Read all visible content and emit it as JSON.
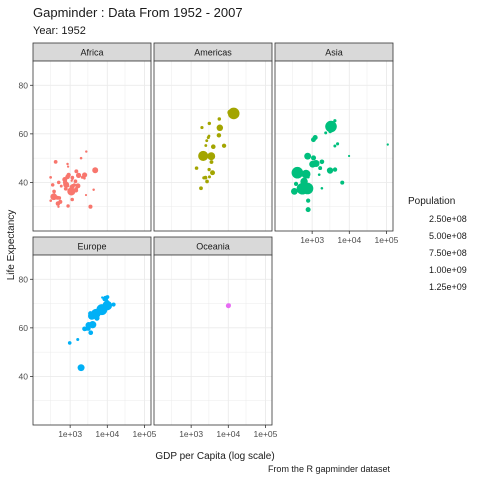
{
  "chart_data": {
    "type": "scatter",
    "title": "Gapminder : Data From 1952 - 2007",
    "subtitle": "Year: 1952",
    "xlabel": "GDP per Capita (log scale)",
    "ylabel": "Life Expectancy",
    "caption": "From the R gapminder dataset",
    "x_scale": "log10",
    "xlim": [
      100,
      150000
    ],
    "ylim": [
      20,
      90
    ],
    "x_ticks": [
      1000,
      10000,
      100000
    ],
    "x_tick_labels": [
      "1e+03",
      "1e+04",
      "1e+05"
    ],
    "y_ticks": [
      40,
      60,
      80
    ],
    "y_tick_labels": [
      "40",
      "60",
      "80"
    ],
    "grid": true,
    "legend": {
      "title": "Population",
      "position": "right",
      "labels": [
        "2.50e+08",
        "5.00e+08",
        "7.50e+08",
        "1.00e+09",
        "1.25e+09"
      ]
    },
    "colors": {
      "Africa": "#F8766D",
      "Americas": "#A3A500",
      "Asia": "#00BF7D",
      "Europe": "#00B0F6",
      "Oceania": "#E76BF3"
    },
    "facets": [
      {
        "name": "Africa",
        "points": [
          [
            2449,
            43.1,
            9.3
          ],
          [
            3521,
            30.0,
            4.2
          ],
          [
            1063,
            38.2,
            1.7
          ],
          [
            851,
            47.6,
            0.4
          ],
          [
            543,
            32.0,
            4.5
          ],
          [
            339,
            39.0,
            2.4
          ],
          [
            1173,
            38.5,
            5.0
          ],
          [
            1071,
            35.5,
            1.3
          ],
          [
            1179,
            36.7,
            2.7
          ],
          [
            1103,
            40.7,
            0.2
          ],
          [
            781,
            39.1,
            14.1
          ],
          [
            2126,
            42.1,
            0.9
          ],
          [
            1389,
            40.5,
            2.9
          ],
          [
            2670,
            34.8,
            0.1
          ],
          [
            376,
            35.9,
            0.2
          ],
          [
            329,
            34.1,
            1.4
          ],
          [
            362,
            34.1,
            20.9
          ],
          [
            4293,
            37.0,
            0.4
          ],
          [
            485,
            30.0,
            0.3
          ],
          [
            911,
            43.1,
            5.6
          ],
          [
            511,
            33.6,
            2.7
          ],
          [
            300,
            32.5,
            0.6
          ],
          [
            853,
            42.3,
            6.5
          ],
          [
            298,
            42.1,
            0.7
          ],
          [
            576,
            38.5,
            0.9
          ],
          [
            2388,
            42.7,
            1.0
          ],
          [
            1443,
            36.7,
            4.8
          ],
          [
            369,
            36.3,
            2.9
          ],
          [
            452,
            33.7,
            3.8
          ],
          [
            743,
            40.5,
            1.0
          ],
          [
            1968,
            50.0,
            0.5
          ],
          [
            1688,
            42.9,
            9.9
          ],
          [
            469,
            31.3,
            6.4
          ],
          [
            2424,
            41.7,
            0.5
          ],
          [
            762,
            37.4,
            3.4
          ],
          [
            1077,
            36.3,
            33.1
          ],
          [
            2719,
            52.7,
            0.3
          ],
          [
            493,
            40.0,
            2.5
          ],
          [
            880,
            46.5,
            0.1
          ],
          [
            1450,
            37.3,
            2.8
          ],
          [
            879,
            30.3,
            2.1
          ],
          [
            1136,
            32.98,
            2.5
          ],
          [
            4725,
            45.0,
            14.3
          ],
          [
            1616,
            38.6,
            8.5
          ],
          [
            1148,
            41.4,
            0.3
          ],
          [
            717,
            41.2,
            8.3
          ],
          [
            860,
            38.6,
            1.2
          ],
          [
            1468,
            44.6,
            3.6
          ],
          [
            734,
            39.98,
            5.8
          ],
          [
            1147,
            42.0,
            2.7
          ],
          [
            407,
            48.45,
            3.1
          ],
          [
            1300,
            39.0,
            1.8
          ]
        ]
      },
      {
        "name": "Americas",
        "points": [
          [
            5911,
            62.5,
            17.9
          ],
          [
            2677,
            40.4,
            2.9
          ],
          [
            2109,
            50.9,
            56.6
          ],
          [
            11367,
            68.8,
            14.8
          ],
          [
            3940,
            54.7,
            6.4
          ],
          [
            2144,
            50.6,
            12.4
          ],
          [
            2627,
            57.2,
            0.9
          ],
          [
            5587,
            59.4,
            6.0
          ],
          [
            1398,
            45.9,
            2.5
          ],
          [
            3522,
            48.4,
            3.5
          ],
          [
            3048,
            45.3,
            2.0
          ],
          [
            2428,
            42.0,
            3.1
          ],
          [
            1840,
            37.6,
            3.2
          ],
          [
            2195,
            41.9,
            1.5
          ],
          [
            2898,
            58.5,
            1.4
          ],
          [
            3478,
            50.8,
            30.1
          ],
          [
            3112,
            42.3,
            1.2
          ],
          [
            2480,
            55.2,
            0.9
          ],
          [
            1952,
            62.6,
            1.6
          ],
          [
            3759,
            44.0,
            8.0
          ],
          [
            3082,
            64.3,
            2.2
          ],
          [
            3023,
            59.1,
            0.7
          ],
          [
            13990,
            68.4,
            157.6
          ],
          [
            5717,
            66.1,
            2.3
          ],
          [
            7690,
            55.1,
            5.4
          ]
        ]
      },
      {
        "name": "Asia",
        "points": [
          [
            779,
            28.8,
            8.4
          ],
          [
            9867,
            50.9,
            0.1
          ],
          [
            684,
            37.5,
            46.9
          ],
          [
            368,
            39.4,
            4.7
          ],
          [
            400,
            44.0,
            556.3
          ],
          [
            3054,
            60.96,
            2.1
          ],
          [
            547,
            37.4,
            372.0
          ],
          [
            750,
            37.5,
            82.1
          ],
          [
            3035,
            44.9,
            17.3
          ],
          [
            4130,
            45.3,
            5.4
          ],
          [
            4087,
            65.4,
            1.6
          ],
          [
            3217,
            63.0,
            86.5
          ],
          [
            1547,
            43.2,
            0.6
          ],
          [
            1088,
            50.1,
            8.9
          ],
          [
            1031,
            47.5,
            20.9
          ],
          [
            108382,
            55.6,
            0.2
          ],
          [
            4835,
            55.9,
            1.4
          ],
          [
            1831,
            48.5,
            6.7
          ],
          [
            786,
            42.2,
            0.8
          ],
          [
            332,
            36.3,
            20.1
          ],
          [
            546,
            36.2,
            9.2
          ],
          [
            1828,
            37.6,
            0.5
          ],
          [
            684,
            43.4,
            41.3
          ],
          [
            1273,
            47.8,
            22.4
          ],
          [
            6460,
            39.9,
            4.0
          ],
          [
            2315,
            60.4,
            1.1
          ],
          [
            1083,
            57.6,
            7.98
          ],
          [
            1644,
            45.9,
            3.7
          ],
          [
            1207,
            58.5,
            8.6
          ],
          [
            757,
            50.8,
            21.3
          ],
          [
            606,
            40.4,
            26.2
          ],
          [
            781,
            32.5,
            4.96
          ],
          [
            4086,
            55.0,
            1.1
          ]
        ]
      },
      {
        "name": "Europe",
        "points": [
          [
            1601,
            55.2,
            1.3
          ],
          [
            6137,
            66.8,
            6.9
          ],
          [
            8343,
            68.0,
            8.7
          ],
          [
            973,
            53.8,
            2.8
          ],
          [
            2444,
            59.6,
            7.3
          ],
          [
            3119,
            61.2,
            3.9
          ],
          [
            6876,
            66.9,
            9.1
          ],
          [
            9692,
            70.8,
            4.3
          ],
          [
            6424,
            66.6,
            4.1
          ],
          [
            7030,
            67.4,
            42.5
          ],
          [
            7144,
            67.5,
            69.1
          ],
          [
            3531,
            65.9,
            7.7
          ],
          [
            5264,
            64.0,
            9.5
          ],
          [
            7268,
            72.5,
            0.1
          ],
          [
            5211,
            66.9,
            3.0
          ],
          [
            4931,
            65.9,
            47.7
          ],
          [
            2648,
            59.2,
            0.4
          ],
          [
            8942,
            72.1,
            10.4
          ],
          [
            10095,
            72.7,
            3.3
          ],
          [
            4029,
            61.3,
            25.7
          ],
          [
            3068,
            59.8,
            8.5
          ],
          [
            3145,
            61.1,
            16.6
          ],
          [
            3582,
            58.0,
            6.9
          ],
          [
            5074,
            64.4,
            3.6
          ],
          [
            4215,
            65.6,
            1.5
          ],
          [
            3834,
            64.9,
            28.6
          ],
          [
            8528,
            71.9,
            7.1
          ],
          [
            14734,
            69.6,
            4.8
          ],
          [
            1969,
            43.6,
            22.2
          ],
          [
            9980,
            69.2,
            50.4
          ]
        ]
      },
      {
        "name": "Oceania",
        "points": [
          [
            10040,
            69.1,
            8.7
          ],
          [
            10557,
            69.4,
            1.99
          ]
        ]
      }
    ]
  }
}
